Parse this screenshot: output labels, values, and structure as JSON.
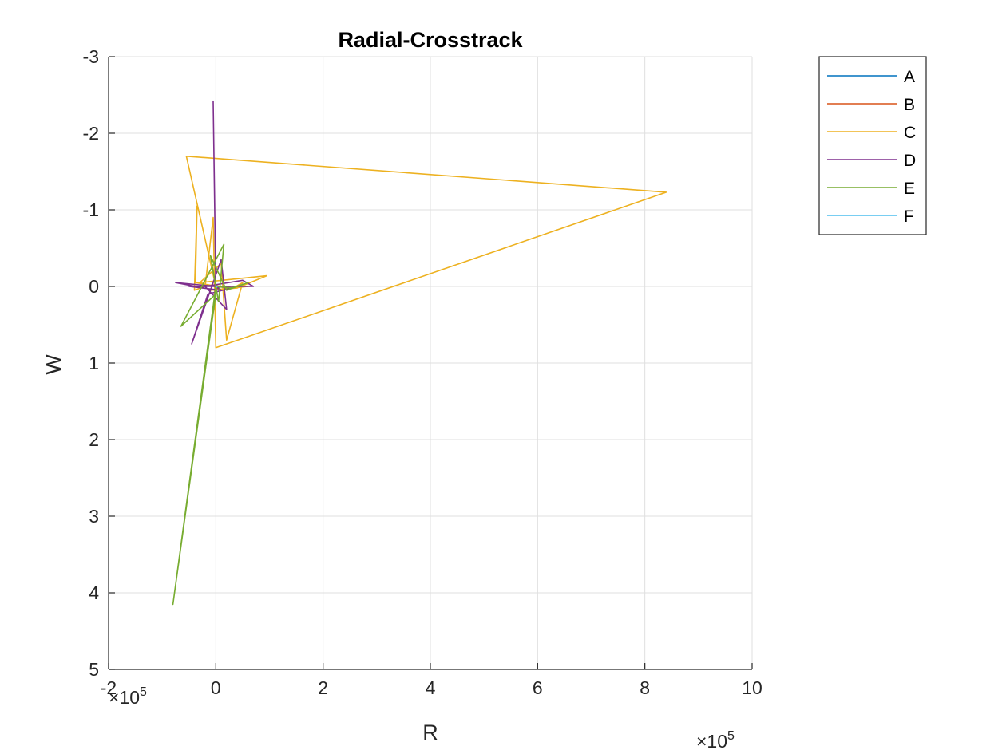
{
  "chart_data": {
    "type": "line",
    "title": "Radial-Crosstrack",
    "xlabel": "R",
    "ylabel": "W",
    "xlim": [
      -200000,
      1000000
    ],
    "ylim": [
      -3,
      5
    ],
    "y_reversed": true,
    "grid": true,
    "legend_position": "outside-top-right",
    "x_ticks": [
      -200000,
      0,
      200000,
      400000,
      600000,
      800000,
      1000000
    ],
    "x_tick_labels": [
      "-2",
      "0",
      "2",
      "4",
      "6",
      "8",
      "10"
    ],
    "y_ticks": [
      -3,
      -2,
      -1,
      0,
      1,
      2,
      3,
      4,
      5
    ],
    "y_tick_labels": [
      "-3",
      "-2",
      "-1",
      "0",
      "1",
      "2",
      "3",
      "4",
      "5"
    ],
    "x_multiplier": "×10",
    "x_multiplier_exp": "5",
    "series": [
      {
        "name": "A",
        "color": "#0072BD",
        "points": [
          [
            0,
            0
          ],
          [
            5000,
            0.02
          ],
          [
            -3000,
            -0.01
          ],
          [
            2000,
            0.03
          ]
        ]
      },
      {
        "name": "B",
        "color": "#D95319",
        "points": [
          [
            0,
            0
          ],
          [
            10000,
            0.05
          ],
          [
            -8000,
            -0.02
          ],
          [
            25000,
            0.02
          ],
          [
            0,
            0
          ]
        ]
      },
      {
        "name": "C",
        "color": "#EDB120",
        "points": [
          [
            0,
            0
          ],
          [
            -55000,
            -1.7
          ],
          [
            840000,
            -1.23
          ],
          [
            0,
            0.8
          ],
          [
            -5000,
            -0.9
          ],
          [
            -20000,
            0.0
          ],
          [
            -40000,
            0.05
          ],
          [
            -35000,
            -1.05
          ],
          [
            -38000,
            -0.05
          ],
          [
            30000,
            0.03
          ],
          [
            50000,
            -0.05
          ],
          [
            20000,
            0.7
          ],
          [
            10000,
            -0.3
          ],
          [
            -30000,
            -0.05
          ],
          [
            95000,
            -0.14
          ],
          [
            40000,
            0.02
          ],
          [
            -10000,
            0.05
          ],
          [
            60000,
            0.0
          ],
          [
            0,
            0.0
          ]
        ]
      },
      {
        "name": "D",
        "color": "#7E2F8E",
        "points": [
          [
            0,
            0
          ],
          [
            -5000,
            -2.42
          ],
          [
            0,
            0.05
          ],
          [
            -75000,
            -0.05
          ],
          [
            30000,
            0.02
          ],
          [
            -15000,
            0.1
          ],
          [
            -45000,
            0.75
          ],
          [
            10000,
            -0.35
          ],
          [
            20000,
            0.3
          ],
          [
            -20000,
            0.0
          ],
          [
            50000,
            -0.08
          ],
          [
            70000,
            0.0
          ],
          [
            -50000,
            0.0
          ],
          [
            10000,
            0.05
          ],
          [
            0,
            0
          ]
        ]
      },
      {
        "name": "E",
        "color": "#77AC30",
        "points": [
          [
            0,
            0
          ],
          [
            -80000,
            4.15
          ],
          [
            0,
            0.1
          ],
          [
            -65000,
            0.52
          ],
          [
            15000,
            -0.55
          ],
          [
            5000,
            0.2
          ],
          [
            -10000,
            -0.4
          ],
          [
            20000,
            0.05
          ],
          [
            60000,
            -0.05
          ],
          [
            30000,
            0.02
          ],
          [
            0,
            0
          ]
        ]
      },
      {
        "name": "F",
        "color": "#4DBEEE",
        "points": [
          [
            0,
            0
          ],
          [
            3000,
            0.01
          ]
        ]
      }
    ]
  }
}
